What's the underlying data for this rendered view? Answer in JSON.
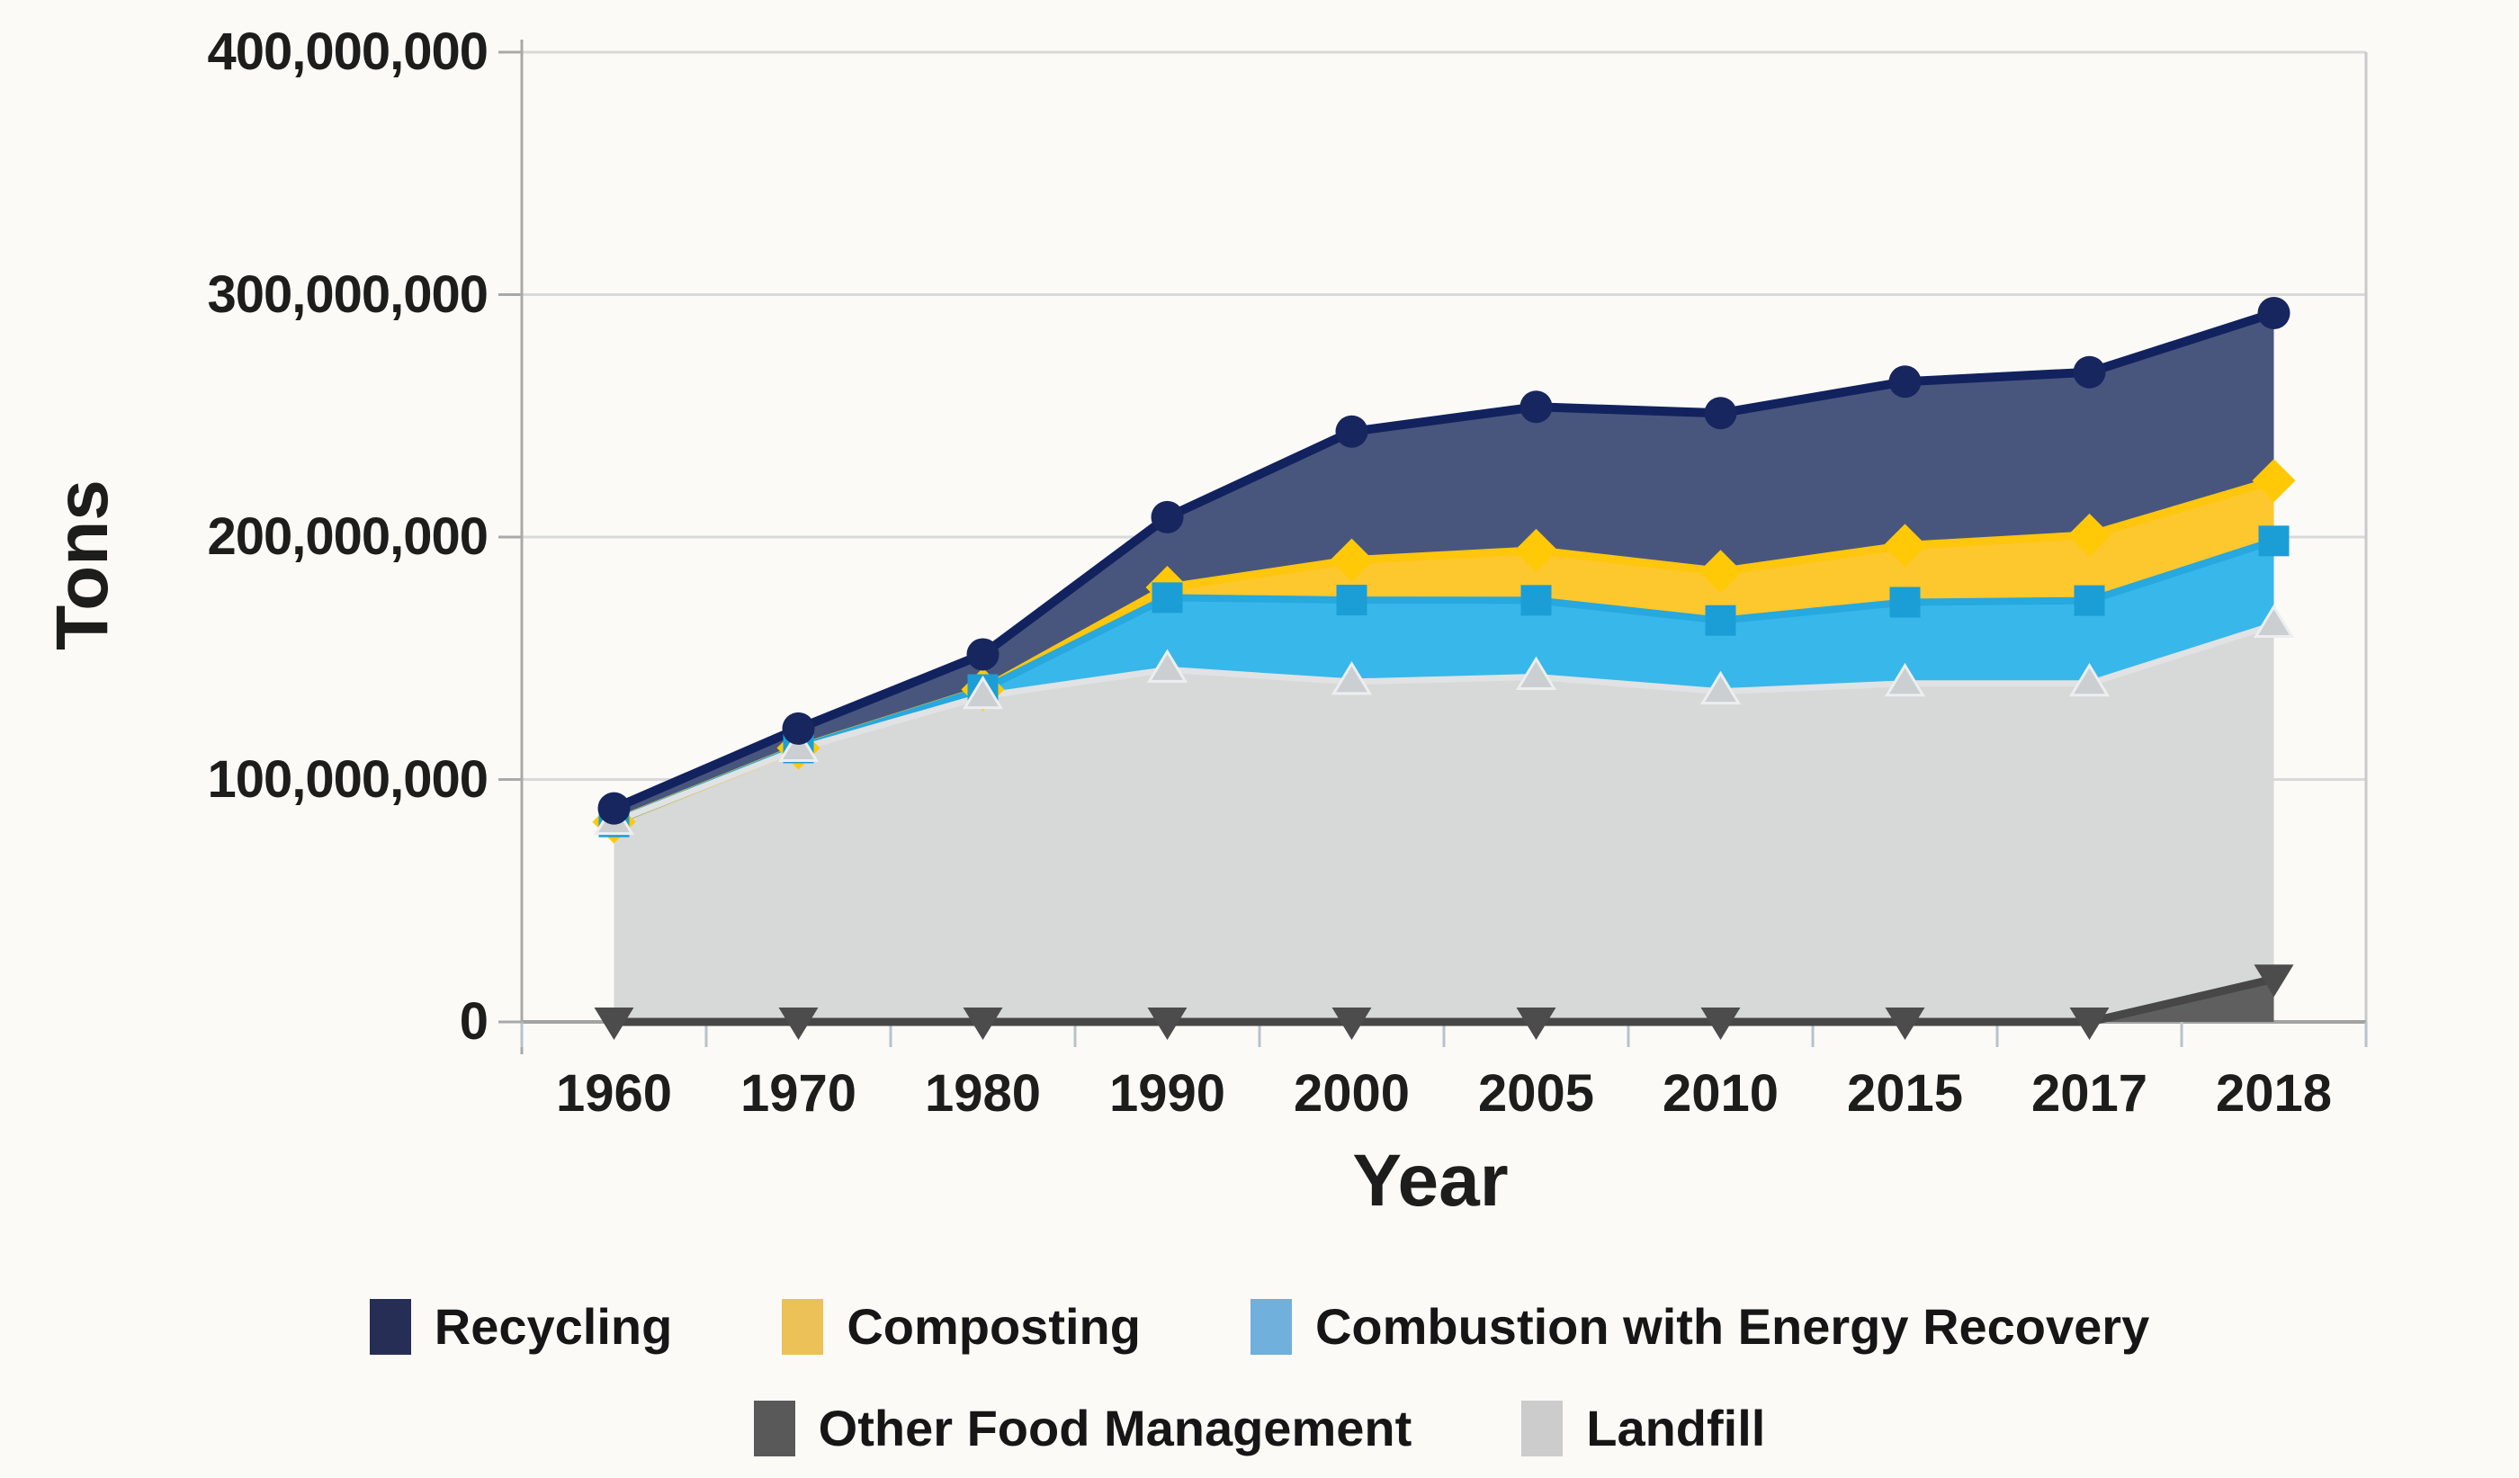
{
  "chart_data": {
    "type": "area",
    "stacked": true,
    "title": "",
    "xlabel": "Year",
    "ylabel": "Tons",
    "categories": [
      "1960",
      "1970",
      "1980",
      "1990",
      "2000",
      "2005",
      "2010",
      "2015",
      "2017",
      "2018"
    ],
    "ylim": [
      0,
      400000000
    ],
    "grid": "horizontal",
    "legend_position": "bottom",
    "y_ticks": [
      {
        "value": 0,
        "label": "0"
      },
      {
        "value": 100000000,
        "label": "100,000,000"
      },
      {
        "value": 200000000,
        "label": "200,000,000"
      },
      {
        "value": 300000000,
        "label": "300,000,000"
      },
      {
        "value": 400000000,
        "label": "400,000,000"
      }
    ],
    "stack_order_bottom_to_top": [
      "Other Food Management",
      "Landfill",
      "Combustion with Energy Recovery",
      "Composting",
      "Recycling"
    ],
    "series": [
      {
        "name": "Recycling",
        "values": [
          5600000,
          8000000,
          14500000,
          29000000,
          53000000,
          59200000,
          65300000,
          67600000,
          67200000,
          69100000
        ],
        "color_area": "#48567e",
        "color_line": "#12225e",
        "line_width": 10,
        "marker": "circle",
        "color_marker": "#17265e",
        "legend_color": "#272e55"
      },
      {
        "name": "Composting",
        "values": [
          0,
          0,
          0,
          4200000,
          16500000,
          20600000,
          20200000,
          23400000,
          27000000,
          24900000
        ],
        "color_area": "#fdc72e",
        "color_line": "#ffc60e",
        "line_width": 9,
        "marker": "diamond",
        "color_marker": "#ffc908",
        "legend_color": "#ebc158"
      },
      {
        "name": "Combustion with Energy Recovery",
        "values": [
          0,
          400000,
          2700000,
          29700000,
          33700000,
          31600000,
          29300000,
          33500000,
          34200000,
          34600000
        ],
        "color_area": "#38b7ea",
        "color_line": "#27a8de",
        "line_width": 8,
        "marker": "square",
        "color_marker": "#1b9ed6",
        "legend_color": "#6fb0dd"
      },
      {
        "name": "Other Food Management",
        "values": [
          0,
          0,
          0,
          0,
          0,
          0,
          0,
          0,
          0,
          17700000
        ],
        "color_area": "#5f5f5f",
        "color_line": "#474747",
        "line_width": 9,
        "marker": "triangle-down",
        "color_marker": "#4c4c4c",
        "legend_color": "#595959"
      },
      {
        "name": "Landfill",
        "values": [
          82500000,
          112600000,
          134400000,
          145300000,
          140300000,
          142300000,
          136300000,
          139600000,
          139600000,
          146100000
        ],
        "color_area": "#d7d8d8",
        "color_line": "#e0e2e3",
        "line_width": 7,
        "marker": "triangle-up",
        "color_marker": "#cbcfd2",
        "marker_stroke": "#eceeef",
        "legend_color": "#cccccc"
      }
    ],
    "axis_colors": {
      "grid": "#d9d9d9",
      "left_border": "#a9a9a9",
      "right_border": "#c9c9c9",
      "bottom_axis": "#a3a3a3",
      "x_tick": "#b7c3cb",
      "y_tick": "#a9a9a9"
    }
  },
  "legend": {
    "rows": [
      [
        "Recycling",
        "Composting",
        "Combustion with Energy Recovery"
      ],
      [
        "Other Food Management",
        "Landfill"
      ]
    ]
  }
}
